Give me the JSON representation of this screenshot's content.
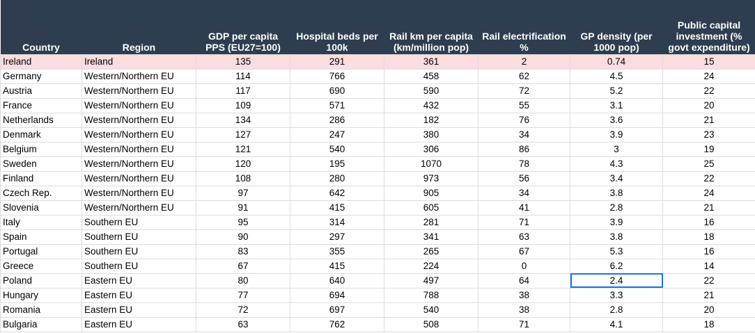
{
  "table": {
    "columns": [
      "Country",
      "Region",
      "GDP per capita PPS (EU27=100)",
      "Hospital beds per 100k",
      "Rail km per capita (km/million pop)",
      "Rail electrification %",
      "GP density (per 1000 pop)",
      "Public capital investment (% govt expenditure)"
    ],
    "rows": [
      [
        "Ireland",
        "Ireland",
        135,
        291,
        361,
        2,
        0.74,
        15
      ],
      [
        "Germany",
        "Western/Northern EU",
        114,
        766,
        458,
        62,
        4.5,
        24
      ],
      [
        "Austria",
        "Western/Northern EU",
        117,
        690,
        590,
        72,
        5.2,
        22
      ],
      [
        "France",
        "Western/Northern EU",
        109,
        571,
        432,
        55,
        3.1,
        20
      ],
      [
        "Netherlands",
        "Western/Northern EU",
        134,
        286,
        182,
        76,
        3.6,
        21
      ],
      [
        "Denmark",
        "Western/Northern EU",
        127,
        247,
        380,
        34,
        3.9,
        23
      ],
      [
        "Belgium",
        "Western/Northern EU",
        121,
        540,
        306,
        86,
        3,
        19
      ],
      [
        "Sweden",
        "Western/Northern EU",
        120,
        195,
        1070,
        78,
        4.3,
        25
      ],
      [
        "Finland",
        "Western/Northern EU",
        108,
        280,
        973,
        56,
        3.4,
        22
      ],
      [
        "Czech Rep.",
        "Western/Northern EU",
        97,
        642,
        905,
        34,
        3.8,
        24
      ],
      [
        "Slovenia",
        "Western/Northern EU",
        91,
        415,
        605,
        41,
        2.8,
        21
      ],
      [
        "Italy",
        "Southern EU",
        95,
        314,
        281,
        71,
        3.9,
        16
      ],
      [
        "Spain",
        "Southern EU",
        90,
        297,
        341,
        63,
        3.8,
        18
      ],
      [
        "Portugal",
        "Southern EU",
        83,
        355,
        265,
        67,
        5.3,
        16
      ],
      [
        "Greece",
        "Southern EU",
        67,
        415,
        224,
        0,
        6.2,
        14
      ],
      [
        "Poland",
        "Eastern EU",
        80,
        640,
        497,
        64,
        2.4,
        22
      ],
      [
        "Hungary",
        "Eastern EU",
        77,
        694,
        788,
        38,
        3.3,
        21
      ],
      [
        "Romania",
        "Eastern EU",
        72,
        697,
        540,
        38,
        2.8,
        20
      ],
      [
        "Bulgaria",
        "Eastern EU",
        63,
        762,
        508,
        71,
        4.1,
        18
      ]
    ]
  }
}
